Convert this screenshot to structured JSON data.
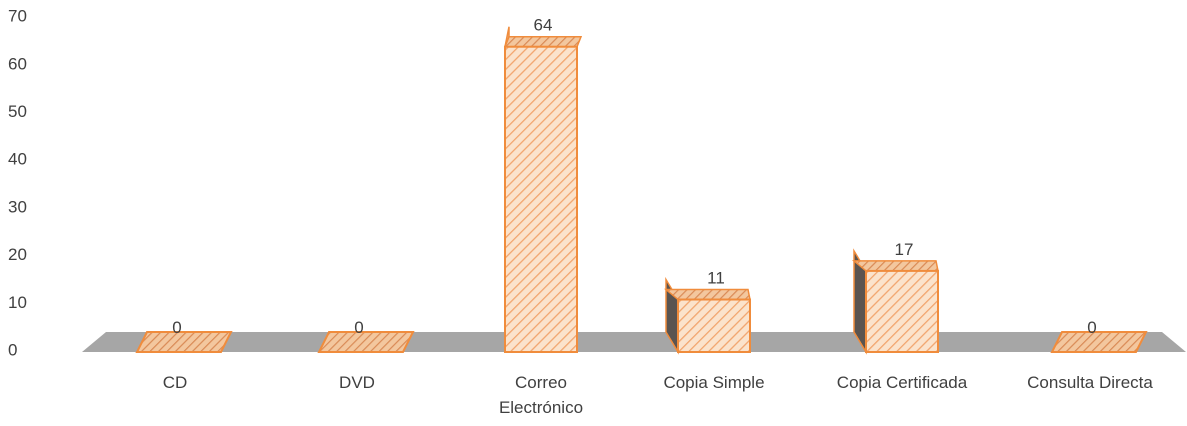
{
  "chart_data": {
    "type": "bar",
    "title": "",
    "xlabel": "",
    "ylabel": "",
    "categories": [
      [
        "CD"
      ],
      [
        "DVD"
      ],
      [
        "Correo",
        "Electrónico"
      ],
      [
        "Copia Simple"
      ],
      [
        "Copia Certificada"
      ],
      [
        "Consulta Directa"
      ]
    ],
    "values": [
      0,
      0,
      64,
      11,
      17,
      0
    ],
    "data_labels": [
      "0",
      "0",
      "64",
      "11",
      "17",
      "0"
    ],
    "yticks": [
      "0",
      "10",
      "20",
      "30",
      "40",
      "50",
      "60",
      "70"
    ],
    "ylim": [
      0,
      70
    ],
    "grid": false,
    "legend": "none",
    "style": "3d-column",
    "colors": {
      "bar_fill": "#fbe3cc",
      "bar_hatch": "#f2a56e",
      "bar_edge": "#f08c3c",
      "side_dark": "#5a5450",
      "floor": "#a6a6a6",
      "text": "#404040"
    }
  }
}
